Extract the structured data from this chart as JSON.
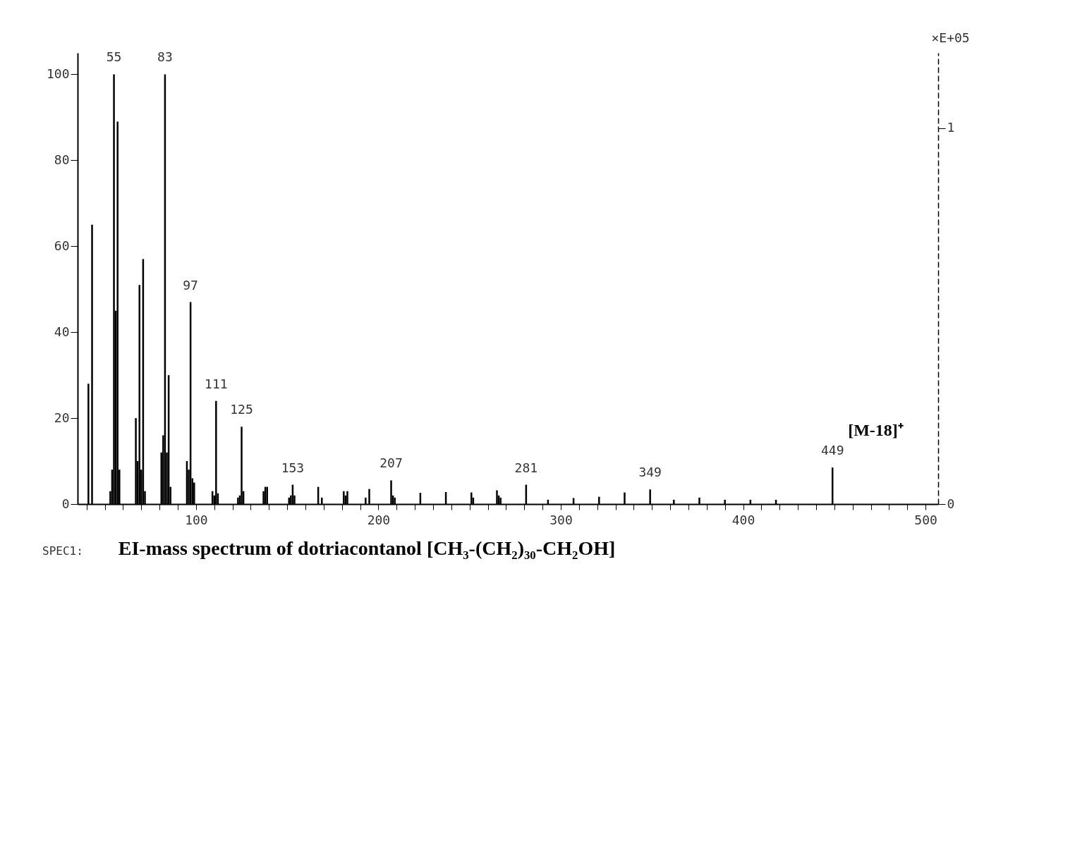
{
  "chart_data": {
    "type": "bar",
    "title": "EI-mass spectrum  of dotriacontanol [CH₃-(CH₂)₃₀-CH₂OH]",
    "y2label": "×E+05",
    "x": [
      41,
      43,
      53,
      54,
      55,
      56,
      57,
      58,
      67,
      68,
      69,
      70,
      71,
      72,
      81,
      82,
      83,
      84,
      85,
      86,
      95,
      96,
      97,
      98,
      99,
      109,
      110,
      111,
      112,
      123,
      124,
      125,
      126,
      137,
      138,
      139,
      151,
      152,
      153,
      154,
      167,
      169,
      181,
      182,
      183,
      193,
      195,
      207,
      208,
      209,
      223,
      237,
      251,
      252,
      265,
      266,
      267,
      281,
      293,
      307,
      321,
      335,
      349,
      362,
      376,
      390,
      404,
      418,
      449
    ],
    "series": [
      {
        "color": "#000000",
        "values": [
          28,
          65,
          3,
          8,
          100,
          45,
          89,
          8,
          20,
          10,
          51,
          8,
          57,
          3,
          12,
          16,
          100,
          12,
          30,
          4,
          10,
          8,
          47,
          6,
          5,
          3,
          2,
          24,
          2.5,
          1.5,
          2,
          18,
          3,
          3,
          4,
          4,
          1.5,
          2,
          4.5,
          2,
          4,
          1.5,
          3,
          2,
          3,
          1.5,
          3.5,
          5.5,
          2,
          1.5,
          2.6,
          2.8,
          2.7,
          1.5,
          3.2,
          2,
          1.5,
          4.5,
          1,
          1.4,
          1.7,
          2.7,
          3.4,
          1,
          1.5,
          1,
          1,
          1,
          8.5
        ]
      }
    ],
    "xlim": [
      37,
      505
    ],
    "xticks": [
      {
        "value": 40,
        "label": null
      },
      {
        "value": 50,
        "label": null
      },
      {
        "value": 60,
        "label": null
      },
      {
        "value": 70,
        "label": null
      },
      {
        "value": 80,
        "label": null
      },
      {
        "value": 90,
        "label": null
      },
      100,
      {
        "value": 110,
        "label": null
      },
      {
        "value": 120,
        "label": null
      },
      {
        "value": 130,
        "label": null
      },
      {
        "value": 140,
        "label": null
      },
      {
        "value": 150,
        "label": null
      },
      {
        "value": 160,
        "label": null
      },
      {
        "value": 170,
        "label": null
      },
      {
        "value": 180,
        "label": null
      },
      {
        "value": 190,
        "label": null
      },
      200,
      {
        "value": 210,
        "label": null
      },
      {
        "value": 220,
        "label": null
      },
      {
        "value": 230,
        "label": null
      },
      {
        "value": 240,
        "label": null
      },
      {
        "value": 250,
        "label": null
      },
      {
        "value": 260,
        "label": null
      },
      {
        "value": 270,
        "label": null
      },
      {
        "value": 280,
        "label": null
      },
      {
        "value": 290,
        "label": null
      },
      300,
      {
        "value": 310,
        "label": null
      },
      {
        "value": 320,
        "label": null
      },
      {
        "value": 330,
        "label": null
      },
      {
        "value": 340,
        "label": null
      },
      {
        "value": 350,
        "label": null
      },
      {
        "value": 360,
        "label": null
      },
      {
        "value": 370,
        "label": null
      },
      {
        "value": 380,
        "label": null
      },
      {
        "value": 390,
        "label": null
      },
      400,
      {
        "value": 410,
        "label": null
      },
      {
        "value": 420,
        "label": null
      },
      {
        "value": 430,
        "label": null
      },
      {
        "value": 440,
        "label": null
      },
      {
        "value": 450,
        "label": null
      },
      {
        "value": 460,
        "label": null
      },
      {
        "value": 470,
        "label": null
      },
      {
        "value": 480,
        "label": null
      },
      {
        "value": 490,
        "label": null
      },
      500
    ],
    "ylim": [
      0,
      105
    ],
    "yticks": [
      0,
      20,
      40,
      60,
      80,
      100
    ],
    "y2lim": [
      0,
      1.2
    ],
    "y2ticks": [
      0,
      1
    ],
    "grid": false,
    "annotations": [
      {
        "text": "55",
        "x": 55,
        "y": 100
      },
      {
        "text": "83",
        "x": 83,
        "y": 100
      },
      {
        "text": "97",
        "x": 97,
        "y": 47
      },
      {
        "text": "111",
        "x": 111,
        "y": 24
      },
      {
        "text": "125",
        "x": 125,
        "y": 18
      },
      {
        "text": "153",
        "x": 153,
        "y": 4.5
      },
      {
        "text": "207",
        "x": 207,
        "y": 5.5
      },
      {
        "text": "281",
        "x": 281,
        "y": 4.5
      },
      {
        "text": "349",
        "x": 349,
        "y": 3.4
      },
      {
        "text": "449",
        "x": 449,
        "y": 8.5
      },
      {
        "text": "[M-18]⁺",
        "x": 449,
        "y": 8.5
      },
      "SPEC1:"
    ]
  }
}
